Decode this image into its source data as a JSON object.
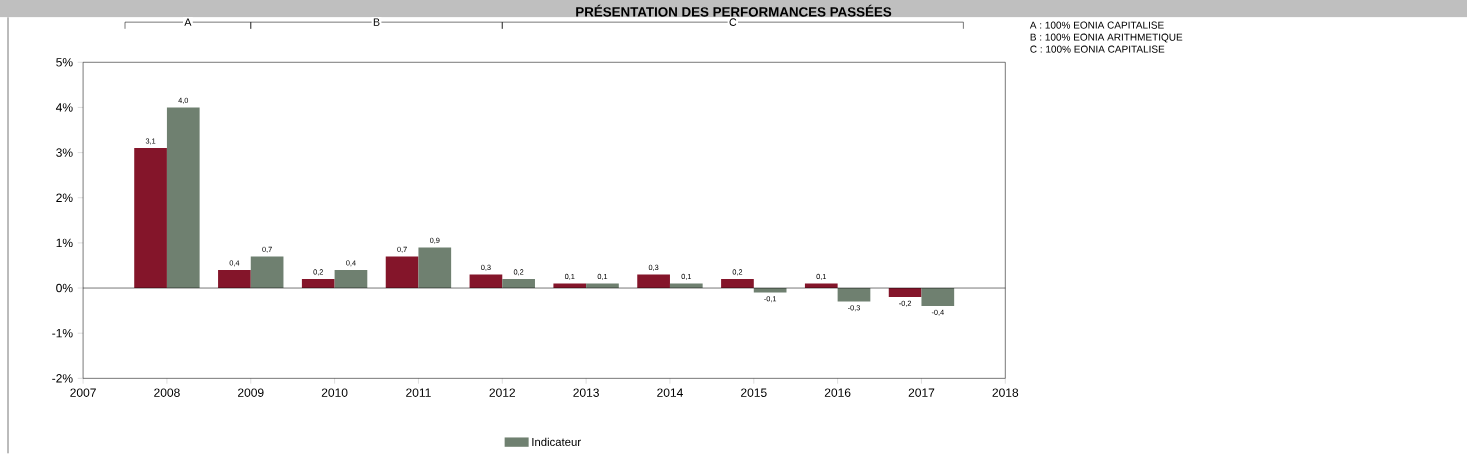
{
  "chart_data": {
    "type": "bar",
    "title": "PRÉSENTATION DES PERFORMANCES PASSÉES",
    "x": [
      2008,
      2009,
      2010,
      2011,
      2012,
      2013,
      2014,
      2015,
      2016,
      2017
    ],
    "series": [
      {
        "color": "#84152a",
        "values": [
          3.1,
          0.4,
          0.2,
          0.7,
          0.3,
          0.1,
          0.3,
          0.2,
          0.1,
          -0.2
        ],
        "value_labels": [
          "3,1",
          "0,4",
          "0,2",
          "0,7",
          "0,3",
          "0,1",
          "0,3",
          "0,2",
          "0,1",
          "-0,2"
        ]
      },
      {
        "name": "Indicateur",
        "color": "#6f8070",
        "values": [
          4.0,
          0.7,
          0.4,
          0.9,
          0.2,
          0.1,
          0.1,
          -0.1,
          -0.3,
          -0.4
        ],
        "value_labels": [
          "4,0",
          "0,7",
          "0,4",
          "0,9",
          "0,2",
          "0,1",
          "0,1",
          "-0,1",
          "-0,3",
          "-0,4"
        ]
      }
    ],
    "xlim": [
      2007,
      2018
    ],
    "xticks": [
      2007,
      2008,
      2009,
      2010,
      2011,
      2012,
      2013,
      2014,
      2015,
      2016,
      2017,
      2018
    ],
    "ylim": [
      -2,
      5
    ],
    "yticks": [
      {
        "value": -2,
        "label": "-2%"
      },
      {
        "value": -1,
        "label": "-1%"
      },
      {
        "value": 0,
        "label": "0%"
      },
      {
        "value": 1,
        "label": "1%"
      },
      {
        "value": 2,
        "label": "2%"
      },
      {
        "value": 3,
        "label": "3%"
      },
      {
        "value": 4,
        "label": "4%"
      },
      {
        "value": 5,
        "label": "5%"
      }
    ],
    "ref_lines": [
      {
        "axis": "y",
        "value": 0
      }
    ],
    "annotations": [
      "A",
      "B",
      "C",
      "A : 100% EONIA CAPITALISE",
      "B : 100% EONIA ARITHMETIQUE",
      "C : 100% EONIA CAPITALISE"
    ],
    "legend": "bottom",
    "grid": false
  }
}
